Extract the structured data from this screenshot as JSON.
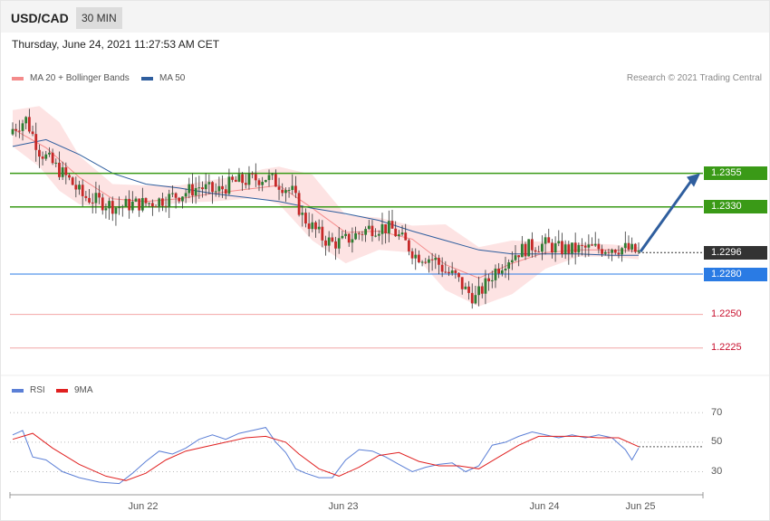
{
  "header": {
    "pair": "USD/CAD",
    "timeframe": "30 MIN",
    "datetime": "Thursday, June 24, 2021 11:27:53 AM CET"
  },
  "legend": {
    "ma20": {
      "label": "MA 20 + Bollinger Bands",
      "color": "#f48b8b"
    },
    "ma50": {
      "label": "MA 50",
      "color": "#2f5e9e"
    },
    "credit": "Research © 2021 Trading Central"
  },
  "rsi_legend": {
    "rsi": {
      "label": "RSI",
      "color": "#5b7fd6"
    },
    "ma9": {
      "label": "9MA",
      "color": "#e02020"
    }
  },
  "levels": [
    {
      "value": "1.2355",
      "style": "resistance"
    },
    {
      "value": "1.2330",
      "style": "resistance"
    },
    {
      "value": "1.2296",
      "style": "current"
    },
    {
      "value": "1.2280",
      "style": "support"
    },
    {
      "value": "1.2250",
      "style": "minor"
    },
    {
      "value": "1.2225",
      "style": "minor"
    }
  ],
  "rsi_levels": [
    "70",
    "50",
    "30"
  ],
  "x_labels": [
    "Jun 22",
    "Jun 23",
    "Jun 24",
    "Jun 25"
  ],
  "chart_data": [
    {
      "type": "candlestick",
      "title": "USD/CAD",
      "interval": "30 MIN",
      "ylim": [
        1.2208,
        1.242
      ],
      "close_path": [
        [
          0,
          1.2388
        ],
        [
          4,
          1.2395
        ],
        [
          8,
          1.2372
        ],
        [
          12,
          1.2362
        ],
        [
          17,
          1.235
        ],
        [
          21,
          1.2338
        ],
        [
          26,
          1.2334
        ],
        [
          31,
          1.233
        ],
        [
          36,
          1.2332
        ],
        [
          41,
          1.2333
        ],
        [
          46,
          1.2336
        ],
        [
          51,
          1.234
        ],
        [
          56,
          1.2345
        ],
        [
          61,
          1.2341
        ],
        [
          66,
          1.2348
        ],
        [
          71,
          1.235
        ],
        [
          76,
          1.2352
        ],
        [
          81,
          1.2346
        ],
        [
          84,
          1.2341
        ],
        [
          87,
          1.2323
        ],
        [
          90,
          1.2315
        ],
        [
          93,
          1.2307
        ],
        [
          96,
          1.2303
        ],
        [
          99,
          1.2304
        ],
        [
          103,
          1.2309
        ],
        [
          107,
          1.2314
        ],
        [
          111,
          1.2315
        ],
        [
          114,
          1.2313
        ],
        [
          118,
          1.2303
        ],
        [
          121,
          1.2294
        ],
        [
          124,
          1.2293
        ],
        [
          127,
          1.229
        ],
        [
          130,
          1.2282
        ],
        [
          133,
          1.2278
        ],
        [
          136,
          1.2268
        ],
        [
          139,
          1.2262
        ],
        [
          142,
          1.2272
        ],
        [
          145,
          1.2283
        ],
        [
          148,
          1.229
        ],
        [
          152,
          1.2297
        ],
        [
          156,
          1.2301
        ],
        [
          160,
          1.2302
        ],
        [
          164,
          1.2299
        ],
        [
          168,
          1.2298
        ],
        [
          172,
          1.2299
        ],
        [
          176,
          1.2299
        ],
        [
          180,
          1.23
        ],
        [
          184,
          1.2299
        ],
        [
          188,
          1.2296
        ]
      ],
      "ma20_path": [
        [
          0,
          1.2388
        ],
        [
          10,
          1.2374
        ],
        [
          20,
          1.2352
        ],
        [
          30,
          1.2336
        ],
        [
          40,
          1.2334
        ],
        [
          50,
          1.2336
        ],
        [
          60,
          1.234
        ],
        [
          70,
          1.2343
        ],
        [
          80,
          1.2346
        ],
        [
          90,
          1.2329
        ],
        [
          100,
          1.2311
        ],
        [
          110,
          1.2312
        ],
        [
          120,
          1.2306
        ],
        [
          130,
          1.2287
        ],
        [
          140,
          1.2277
        ],
        [
          150,
          1.2288
        ],
        [
          160,
          1.2296
        ],
        [
          170,
          1.2298
        ],
        [
          180,
          1.2298
        ],
        [
          188,
          1.2297
        ]
      ],
      "ma50_path": [
        [
          0,
          1.2375
        ],
        [
          10,
          1.238
        ],
        [
          20,
          1.2369
        ],
        [
          30,
          1.2355
        ],
        [
          40,
          1.2347
        ],
        [
          50,
          1.2344
        ],
        [
          60,
          1.234
        ],
        [
          70,
          1.2337
        ],
        [
          80,
          1.2334
        ],
        [
          90,
          1.2329
        ],
        [
          100,
          1.2325
        ],
        [
          110,
          1.232
        ],
        [
          120,
          1.2312
        ],
        [
          130,
          1.2305
        ],
        [
          140,
          1.2298
        ],
        [
          150,
          1.2295
        ],
        [
          160,
          1.2295
        ],
        [
          170,
          1.2295
        ],
        [
          180,
          1.2294
        ],
        [
          188,
          1.2294
        ]
      ],
      "bollinger_upper": [
        [
          0,
          1.2402
        ],
        [
          8,
          1.2405
        ],
        [
          14,
          1.2393
        ],
        [
          20,
          1.2368
        ],
        [
          30,
          1.2347
        ],
        [
          40,
          1.2346
        ],
        [
          50,
          1.2346
        ],
        [
          60,
          1.235
        ],
        [
          70,
          1.2354
        ],
        [
          75,
          1.2358
        ],
        [
          80,
          1.236
        ],
        [
          90,
          1.2354
        ],
        [
          100,
          1.2324
        ],
        [
          110,
          1.2322
        ],
        [
          120,
          1.2316
        ],
        [
          130,
          1.2317
        ],
        [
          140,
          1.23
        ],
        [
          150,
          1.2305
        ],
        [
          160,
          1.2304
        ],
        [
          170,
          1.2303
        ],
        [
          180,
          1.2302
        ],
        [
          188,
          1.23
        ]
      ],
      "bollinger_lower": [
        [
          0,
          1.2375
        ],
        [
          8,
          1.236
        ],
        [
          14,
          1.2342
        ],
        [
          20,
          1.2332
        ],
        [
          30,
          1.2328
        ],
        [
          40,
          1.233
        ],
        [
          50,
          1.2333
        ],
        [
          60,
          1.2334
        ],
        [
          70,
          1.2336
        ],
        [
          75,
          1.2336
        ],
        [
          80,
          1.2332
        ],
        [
          90,
          1.2305
        ],
        [
          100,
          1.2288
        ],
        [
          110,
          1.2298
        ],
        [
          120,
          1.2296
        ],
        [
          130,
          1.2268
        ],
        [
          140,
          1.2256
        ],
        [
          150,
          1.2265
        ],
        [
          160,
          1.2284
        ],
        [
          170,
          1.2293
        ],
        [
          180,
          1.2293
        ],
        [
          188,
          1.2291
        ]
      ],
      "forecast_target": 1.2355
    },
    {
      "type": "line",
      "title": "RSI",
      "ylim": [
        15,
        80
      ],
      "reference_lines": [
        70,
        50,
        30
      ],
      "series": [
        {
          "name": "RSI",
          "values": [
            [
              0,
              55
            ],
            [
              3,
              58
            ],
            [
              6,
              40
            ],
            [
              10,
              38
            ],
            [
              15,
              30
            ],
            [
              20,
              26
            ],
            [
              26,
              23
            ],
            [
              32,
              22
            ],
            [
              36,
              29
            ],
            [
              40,
              37
            ],
            [
              44,
              44
            ],
            [
              48,
              42
            ],
            [
              52,
              46
            ],
            [
              56,
              52
            ],
            [
              60,
              55
            ],
            [
              64,
              52
            ],
            [
              68,
              56
            ],
            [
              72,
              58
            ],
            [
              76,
              60
            ],
            [
              79,
              50
            ],
            [
              82,
              43
            ],
            [
              85,
              32
            ],
            [
              88,
              29
            ],
            [
              92,
              26
            ],
            [
              96,
              26
            ],
            [
              100,
              38
            ],
            [
              104,
              45
            ],
            [
              108,
              44
            ],
            [
              112,
              40
            ],
            [
              116,
              35
            ],
            [
              120,
              30
            ],
            [
              124,
              33
            ],
            [
              128,
              35
            ],
            [
              132,
              36
            ],
            [
              136,
              30
            ],
            [
              140,
              34
            ],
            [
              144,
              48
            ],
            [
              148,
              50
            ],
            [
              152,
              54
            ],
            [
              156,
              57
            ],
            [
              160,
              55
            ],
            [
              164,
              53
            ],
            [
              168,
              55
            ],
            [
              172,
              53
            ],
            [
              176,
              55
            ],
            [
              180,
              53
            ],
            [
              184,
              45
            ],
            [
              186,
              38
            ],
            [
              188,
              46
            ]
          ]
        },
        {
          "name": "9MA",
          "values": [
            [
              0,
              52
            ],
            [
              6,
              56
            ],
            [
              12,
              46
            ],
            [
              20,
              35
            ],
            [
              28,
              27
            ],
            [
              34,
              24
            ],
            [
              40,
              29
            ],
            [
              46,
              38
            ],
            [
              52,
              44
            ],
            [
              58,
              47
            ],
            [
              64,
              50
            ],
            [
              70,
              53
            ],
            [
              76,
              54
            ],
            [
              82,
              50
            ],
            [
              86,
              42
            ],
            [
              92,
              32
            ],
            [
              98,
              27
            ],
            [
              104,
              33
            ],
            [
              110,
              41
            ],
            [
              116,
              43
            ],
            [
              122,
              37
            ],
            [
              128,
              34
            ],
            [
              134,
              34
            ],
            [
              140,
              32
            ],
            [
              146,
              40
            ],
            [
              152,
              48
            ],
            [
              158,
              54
            ],
            [
              164,
              54
            ],
            [
              170,
              54
            ],
            [
              176,
              53
            ],
            [
              182,
              53
            ],
            [
              188,
              47
            ]
          ]
        }
      ]
    }
  ]
}
